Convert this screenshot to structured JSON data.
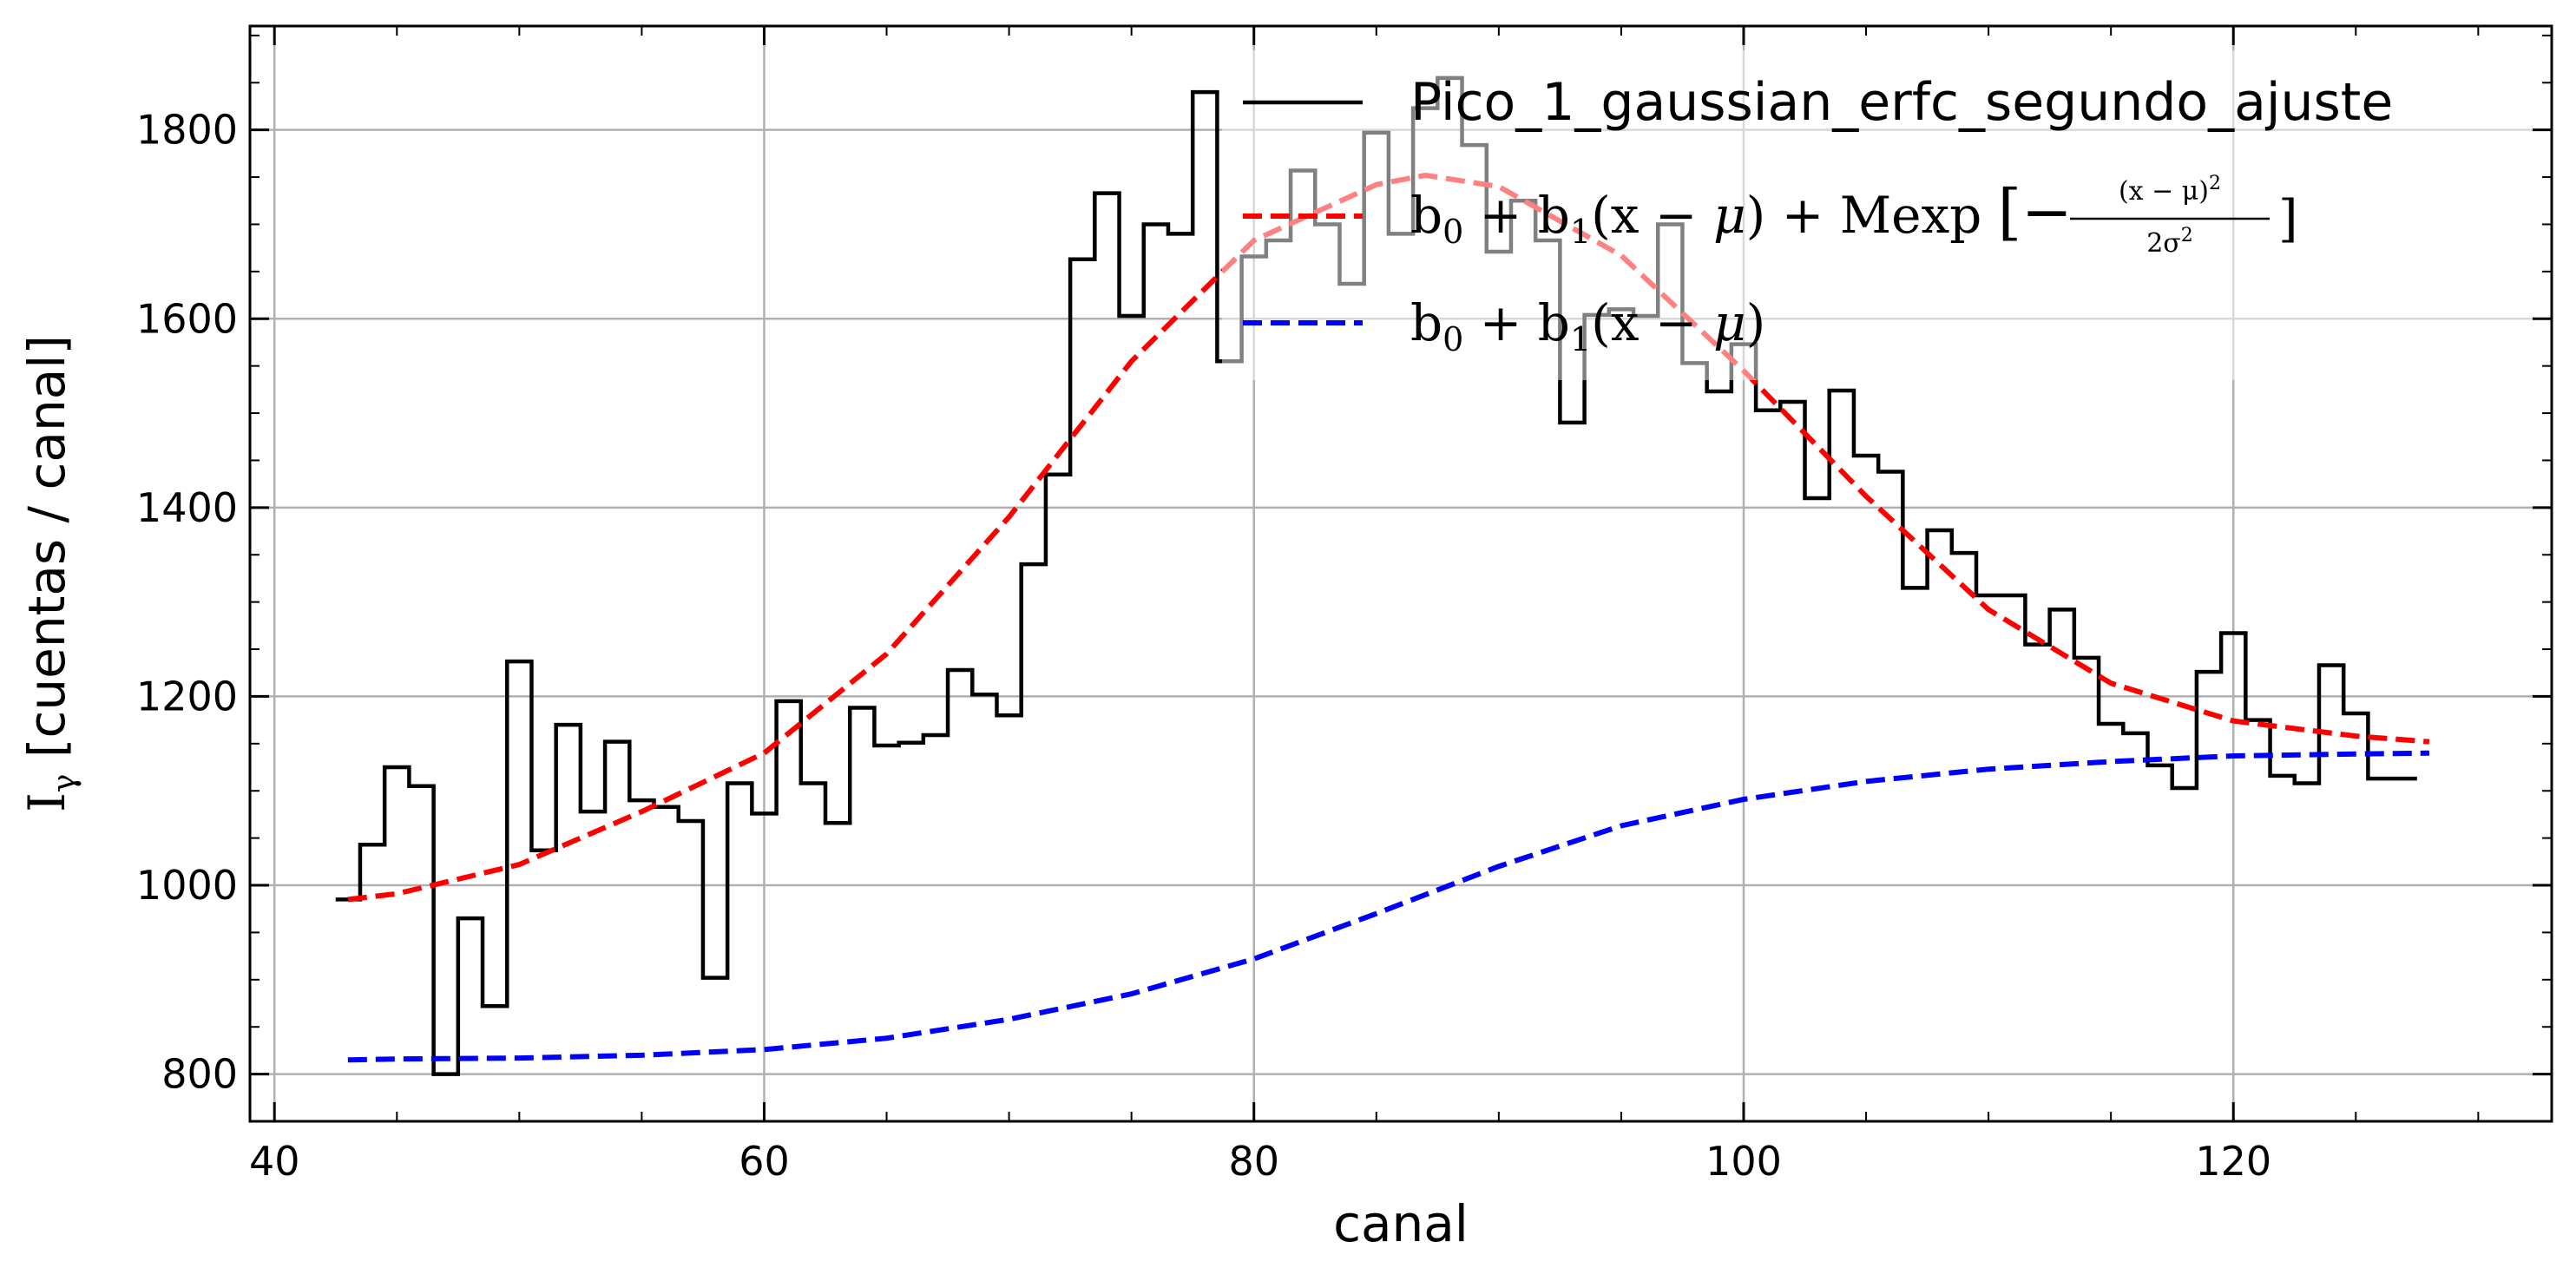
{
  "chart_data": {
    "type": "line",
    "title": "",
    "xlabel": "canal",
    "ylabel_main": "I",
    "ylabel_sub": "γ",
    "ylabel_rest": " [cuentas / canal]",
    "xlim": [
      39,
      133
    ],
    "ylim": [
      750,
      1910
    ],
    "x_ticks": [
      40,
      60,
      80,
      100,
      120
    ],
    "y_ticks": [
      800,
      1000,
      1200,
      1400,
      1600,
      1800
    ],
    "x_minor_step": 5,
    "y_minor_step": 50,
    "grid": true,
    "legend_position": "top-right",
    "series": [
      {
        "name": "Pico_1_gaussian_erfc_segundo_ajuste",
        "style": "steps",
        "color": "#000000",
        "x": [
          43,
          44,
          45,
          46,
          47,
          48,
          49,
          50,
          51,
          52,
          53,
          54,
          55,
          56,
          57,
          58,
          59,
          60,
          61,
          62,
          63,
          64,
          65,
          66,
          67,
          68,
          69,
          70,
          71,
          72,
          73,
          74,
          75,
          76,
          77,
          78,
          79,
          80,
          81,
          82,
          83,
          84,
          85,
          86,
          87,
          88,
          89,
          90,
          91,
          92,
          93,
          94,
          95,
          96,
          97,
          98,
          99,
          100,
          101,
          102,
          103,
          104,
          105,
          106,
          107,
          108,
          109,
          110,
          111,
          112,
          113,
          114,
          115,
          116,
          117,
          118,
          119,
          120,
          121,
          122,
          123,
          124,
          125,
          126,
          127
        ],
        "values": [
          985,
          1043,
          1125,
          1105,
          800,
          965,
          872,
          1237,
          1037,
          1170,
          1078,
          1152,
          1090,
          1083,
          1068,
          902,
          1108,
          1076,
          1195,
          1108,
          1066,
          1188,
          1148,
          1151,
          1159,
          1228,
          1202,
          1180,
          1340,
          1435,
          1663,
          1733,
          1603,
          1700,
          1690,
          1840,
          1555,
          1666,
          1683,
          1757,
          1700,
          1637,
          1797,
          1690,
          1823,
          1855,
          1784,
          1671,
          1725,
          1683,
          1490,
          1604,
          1610,
          1603,
          1700,
          1553,
          1523,
          1573,
          1503,
          1512,
          1410,
          1524,
          1455,
          1438,
          1315,
          1376,
          1352,
          1307,
          1307,
          1255,
          1292,
          1241,
          1171,
          1161,
          1127,
          1103,
          1226,
          1267,
          1175,
          1116,
          1108,
          1233,
          1182,
          1113,
          1113
        ]
      },
      {
        "name_parts": [
          "b",
          "0",
          " + b",
          "1",
          "(x − ",
          "μ",
          ") + Mexp ",
          "[−",
          "(x − μ)",
          "2",
          "2σ",
          "2",
          "]"
        ],
        "style": "dashed",
        "color": "#ff0000",
        "x": [
          43,
          45,
          50,
          55,
          60,
          65,
          70,
          75,
          80,
          85,
          87,
          90,
          95,
          100,
          105,
          110,
          115,
          120,
          125,
          128
        ],
        "values": [
          985,
          991,
          1022,
          1078,
          1140,
          1245,
          1390,
          1555,
          1683,
          1742,
          1752,
          1740,
          1667,
          1545,
          1412,
          1292,
          1214,
          1174,
          1158,
          1152
        ]
      },
      {
        "name_parts": [
          "b",
          "0",
          " + b",
          "1",
          "(x − ",
          "μ",
          ")"
        ],
        "style": "dashed",
        "color": "#0000ff",
        "x": [
          43,
          45,
          50,
          55,
          60,
          65,
          70,
          75,
          80,
          85,
          90,
          95,
          100,
          105,
          110,
          115,
          120,
          125,
          128
        ],
        "values": [
          815,
          816,
          817,
          820,
          826,
          838,
          858,
          885,
          922,
          970,
          1020,
          1063,
          1091,
          1110,
          1123,
          1131,
          1137,
          1139,
          1140
        ]
      }
    ]
  }
}
